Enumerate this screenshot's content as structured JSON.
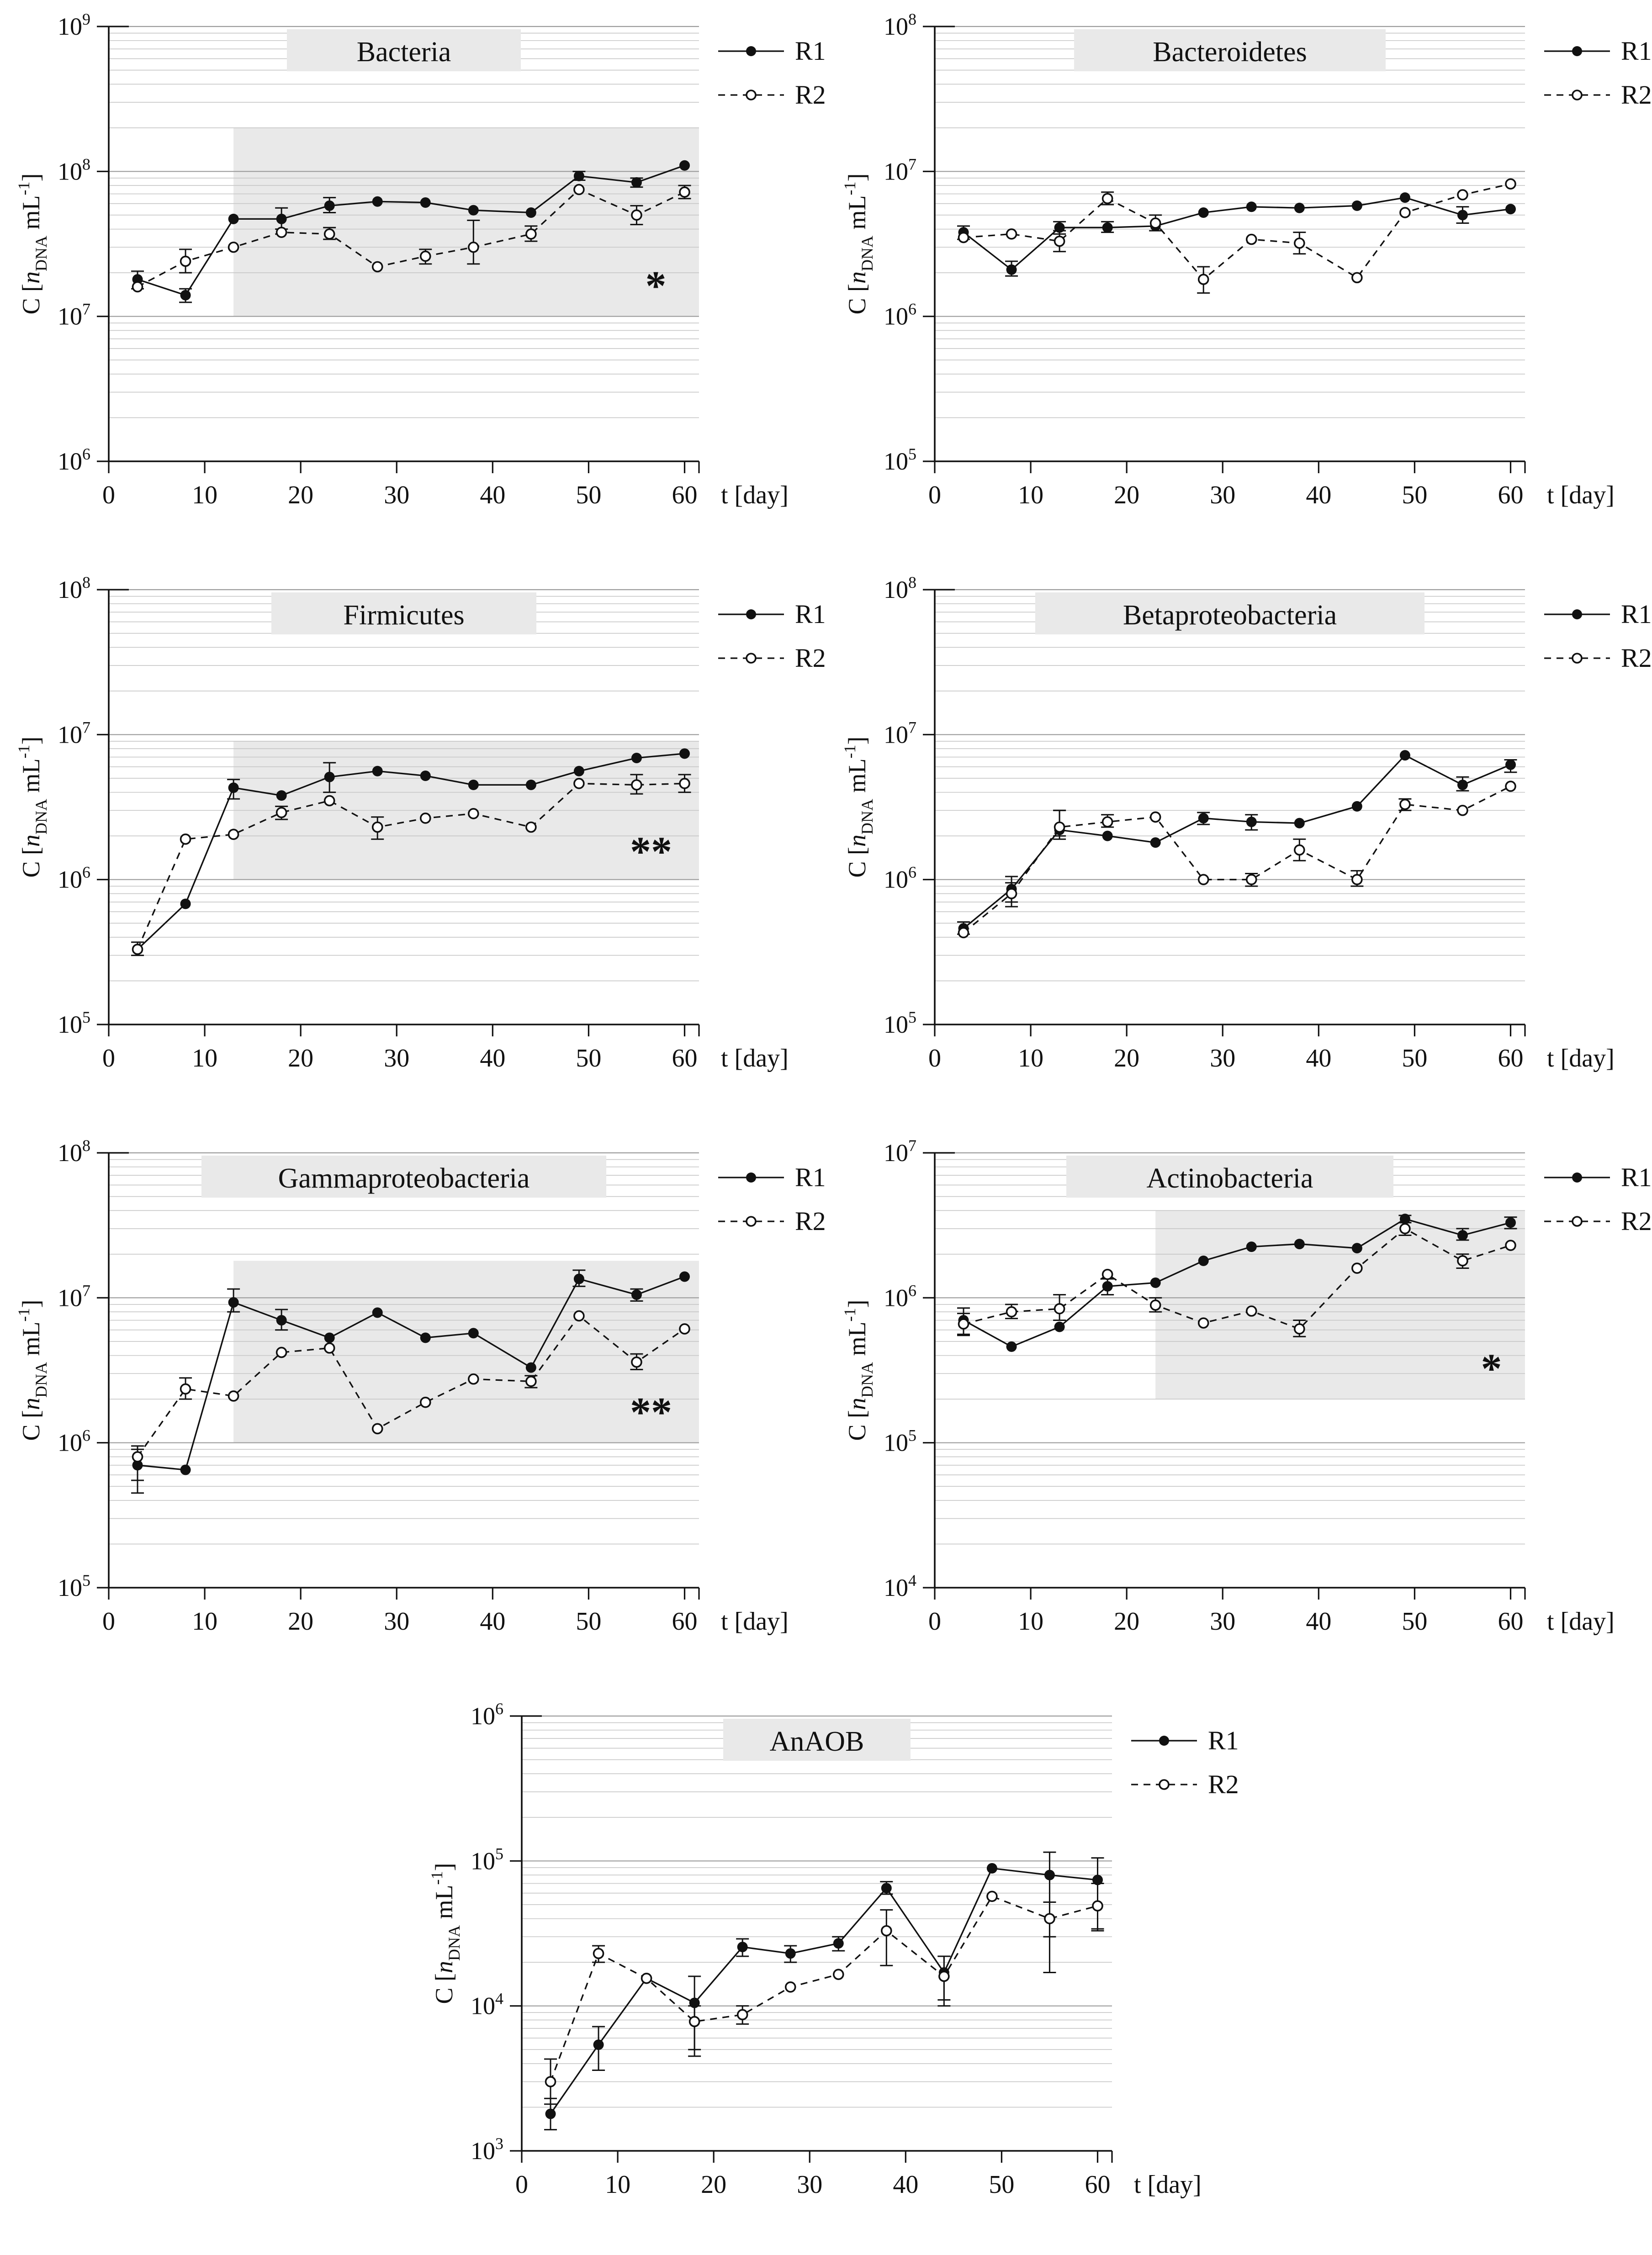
{
  "page": {
    "background": "#ffffff"
  },
  "figure": {
    "x_axis_label": "t [day]",
    "x_ticks": [
      0,
      10,
      20,
      30,
      40,
      50,
      60
    ],
    "x_max": 61.5,
    "y_axis_label": {
      "pre": "C [",
      "var": "n",
      "sub": "DNA",
      "mid": " mL",
      "sup": "-1",
      "post": "]"
    },
    "legend": [
      {
        "label": "R1",
        "marker": "filled-circle",
        "line": "solid"
      },
      {
        "label": "R2",
        "marker": "open-circle",
        "line": "dashed"
      }
    ],
    "colors": {
      "ink": "#111111",
      "grid_minor": "#c6c6c6",
      "grid_major": "#9b9b9b",
      "shade": "#e9e9e9",
      "title_band": "#e9e9e9",
      "marker_open_fill": "#ffffff"
    }
  },
  "chart_data": [
    {
      "type": "line",
      "title": "Bacteria",
      "xlabel": "t [day]",
      "ylabel": "C [nDNA mL-1]",
      "ylim": [
        1000000.0,
        1000000000.0
      ],
      "y_tick_exponents": [
        6,
        7,
        8,
        9
      ],
      "x": [
        3,
        8,
        13,
        18,
        23,
        28,
        33,
        38,
        44,
        49,
        55,
        60
      ],
      "series": [
        {
          "name": "R1",
          "marker": "filled",
          "line": "solid",
          "values": [
            18000000.0,
            14000000.0,
            47000000.0,
            47000000.0,
            58000000.0,
            62000000.0,
            61000000.0,
            54000000.0,
            52000000.0,
            93000000.0,
            84000000.0,
            110000000.0
          ],
          "err": [
            [
              15500000.0,
              20500000.0
            ],
            [
              12500000.0,
              15500000.0
            ],
            null,
            [
              40000000.0,
              56000000.0
            ],
            [
              52000000.0,
              66000000.0
            ],
            null,
            null,
            null,
            null,
            [
              87000000.0,
              100000000.0
            ],
            [
              78000000.0,
              90000000.0
            ],
            null
          ]
        },
        {
          "name": "R2",
          "marker": "open",
          "line": "dashed",
          "values": [
            16000000.0,
            24000000.0,
            30000000.0,
            38000000.0,
            37000000.0,
            22000000.0,
            26000000.0,
            30000000.0,
            37000000.0,
            75000000.0,
            50000000.0,
            72000000.0
          ],
          "err": [
            null,
            [
              20000000.0,
              29000000.0
            ],
            null,
            null,
            [
              34000000.0,
              41000000.0
            ],
            null,
            [
              23000000.0,
              29000000.0
            ],
            [
              23000000.0,
              46000000.0
            ],
            [
              33000000.0,
              42000000.0
            ],
            null,
            [
              43000000.0,
              58000000.0
            ],
            [
              65000000.0,
              80000000.0
            ]
          ]
        }
      ],
      "shading": {
        "x0": 13,
        "x1": 61.5,
        "y0": 10000000.0,
        "y1": 200000000.0,
        "label": "*",
        "label_x": 57,
        "label_y": 13000000.0
      }
    },
    {
      "type": "line",
      "title": "Bacteroidetes",
      "xlabel": "t [day]",
      "ylabel": "C [nDNA mL-1]",
      "ylim": [
        100000.0,
        100000000.0
      ],
      "y_tick_exponents": [
        5,
        6,
        7,
        8
      ],
      "x": [
        3,
        8,
        13,
        18,
        23,
        28,
        33,
        38,
        44,
        49,
        55,
        60
      ],
      "series": [
        {
          "name": "R1",
          "marker": "filled",
          "line": "solid",
          "values": [
            3800000.0,
            2100000.0,
            4100000.0,
            4100000.0,
            4200000.0,
            5200000.0,
            5700000.0,
            5600000.0,
            5800000.0,
            6600000.0,
            5000000.0,
            5500000.0
          ],
          "err": [
            [
              3400000.0,
              4200000.0
            ],
            [
              1900000.0,
              2400000.0
            ],
            [
              3700000.0,
              4500000.0
            ],
            [
              3800000.0,
              4500000.0
            ],
            null,
            null,
            null,
            null,
            null,
            null,
            [
              4400000.0,
              5700000.0
            ],
            null
          ]
        },
        {
          "name": "R2",
          "marker": "open",
          "line": "dashed",
          "values": [
            3500000.0,
            3700000.0,
            3300000.0,
            6500000.0,
            4400000.0,
            1800000.0,
            3400000.0,
            3200000.0,
            1850000.0,
            5200000.0,
            6900000.0,
            8200000.0
          ],
          "err": [
            null,
            null,
            [
              2800000.0,
              3900000.0
            ],
            [
              5900000.0,
              7200000.0
            ],
            [
              3900000.0,
              5000000.0
            ],
            [
              1450000.0,
              2200000.0
            ],
            null,
            [
              2700000.0,
              3800000.0
            ],
            null,
            null,
            null,
            null
          ]
        }
      ],
      "shading": null
    },
    {
      "type": "line",
      "title": "Firmicutes",
      "xlabel": "t [day]",
      "ylabel": "C [nDNA mL-1]",
      "ylim": [
        100000.0,
        100000000.0
      ],
      "y_tick_exponents": [
        5,
        6,
        7,
        8
      ],
      "x": [
        3,
        8,
        13,
        18,
        23,
        28,
        33,
        38,
        44,
        49,
        55,
        60
      ],
      "series": [
        {
          "name": "R1",
          "marker": "filled",
          "line": "solid",
          "values": [
            330000.0,
            680000.0,
            4300000.0,
            3800000.0,
            5100000.0,
            5600000.0,
            5200000.0,
            4500000.0,
            4500000.0,
            5600000.0,
            6900000.0,
            7400000.0
          ],
          "err": [
            [
              300000.0,
              370000.0
            ],
            null,
            [
              3600000.0,
              4900000.0
            ],
            null,
            [
              4000000.0,
              6400000.0
            ],
            null,
            null,
            null,
            null,
            null,
            null,
            null
          ]
        },
        {
          "name": "R2",
          "marker": "open",
          "line": "dashed",
          "values": [
            330000.0,
            1900000.0,
            2050000.0,
            2900000.0,
            3500000.0,
            2300000.0,
            2650000.0,
            2850000.0,
            2300000.0,
            4600000.0,
            4500000.0,
            4600000.0
          ],
          "err": [
            null,
            null,
            null,
            [
              2600000.0,
              3200000.0
            ],
            null,
            [
              1900000.0,
              2700000.0
            ],
            null,
            null,
            null,
            null,
            [
              3900000.0,
              5300000.0
            ],
            [
              4000000.0,
              5300000.0
            ]
          ]
        }
      ],
      "shading": {
        "x0": 13,
        "x1": 61.5,
        "y0": 1000000.0,
        "y1": 9000000.0,
        "label": "**",
        "label_x": 56.5,
        "label_y": 1250000.0
      }
    },
    {
      "type": "line",
      "title": "Betaproteobacteria",
      "xlabel": "t [day]",
      "ylabel": "C [nDNA mL-1]",
      "ylim": [
        100000.0,
        100000000.0
      ],
      "y_tick_exponents": [
        5,
        6,
        7,
        8
      ],
      "x": [
        3,
        8,
        13,
        18,
        23,
        28,
        33,
        38,
        44,
        49,
        55,
        60
      ],
      "series": [
        {
          "name": "R1",
          "marker": "filled",
          "line": "solid",
          "values": [
            460000.0,
            860000.0,
            2200000.0,
            2000000.0,
            1800000.0,
            2650000.0,
            2500000.0,
            2450000.0,
            3200000.0,
            7200000.0,
            4500000.0,
            6200000.0
          ],
          "err": [
            [
              420000.0,
              510000.0
            ],
            [
              700000.0,
              1050000.0
            ],
            [
              1900000.0,
              3000000.0
            ],
            null,
            null,
            [
              2400000.0,
              2900000.0
            ],
            [
              2200000.0,
              2800000.0
            ],
            null,
            null,
            null,
            [
              4100000.0,
              5100000.0
            ],
            [
              5500000.0,
              6700000.0
            ]
          ]
        },
        {
          "name": "R2",
          "marker": "open",
          "line": "dashed",
          "values": [
            430000.0,
            800000.0,
            2300000.0,
            2500000.0,
            2700000.0,
            1000000.0,
            1000000.0,
            1600000.0,
            1000000.0,
            3300000.0,
            3000000.0,
            4400000.0
          ],
          "err": [
            null,
            [
              650000.0,
              950000.0
            ],
            [
              2000000.0,
              3000000.0
            ],
            [
              2300000.0,
              2800000.0
            ],
            null,
            null,
            [
              900000.0,
              1100000.0
            ],
            [
              1350000.0,
              1900000.0
            ],
            [
              900000.0,
              1150000.0
            ],
            [
              3000000.0,
              3600000.0
            ],
            null,
            null
          ]
        }
      ],
      "shading": null
    },
    {
      "type": "line",
      "title": "Gammaproteobacteria",
      "xlabel": "t [day]",
      "ylabel": "C [nDNA mL-1]",
      "ylim": [
        100000.0,
        100000000.0
      ],
      "y_tick_exponents": [
        5,
        6,
        7,
        8
      ],
      "x": [
        3,
        8,
        13,
        18,
        23,
        28,
        33,
        38,
        44,
        49,
        55,
        60
      ],
      "series": [
        {
          "name": "R1",
          "marker": "filled",
          "line": "solid",
          "values": [
            700000.0,
            650000.0,
            9300000.0,
            7000000.0,
            5300000.0,
            7900000.0,
            5300000.0,
            5700000.0,
            3300000.0,
            13500000.0,
            10500000.0,
            14000000.0
          ],
          "err": [
            [
              450000.0,
              900000.0
            ],
            null,
            [
              8000000.0,
              11500000.0
            ],
            [
              6000000.0,
              8300000.0
            ],
            null,
            null,
            null,
            null,
            null,
            [
              12000000.0,
              15500000.0
            ],
            [
              9500000.0,
              11500000.0
            ],
            null
          ]
        },
        {
          "name": "R2",
          "marker": "open",
          "line": "dashed",
          "values": [
            800000.0,
            2350000.0,
            2100000.0,
            4200000.0,
            4500000.0,
            1250000.0,
            1900000.0,
            2750000.0,
            2650000.0,
            7500000.0,
            3600000.0,
            6100000.0
          ],
          "err": [
            [
              550000.0,
              950000.0
            ],
            [
              2000000.0,
              2800000.0
            ],
            null,
            null,
            null,
            null,
            null,
            null,
            [
              2400000.0,
              2900000.0
            ],
            null,
            [
              3200000.0,
              4100000.0
            ],
            null
          ]
        }
      ],
      "shading": {
        "x0": 13,
        "x1": 61.5,
        "y0": 1000000.0,
        "y1": 18000000.0,
        "label": "**",
        "label_x": 56.5,
        "label_y": 1300000.0
      }
    },
    {
      "type": "line",
      "title": "Actinobacteria",
      "xlabel": "t [day]",
      "ylabel": "C [nDNA mL-1]",
      "ylim": [
        10000.0,
        10000000.0
      ],
      "y_tick_exponents": [
        4,
        5,
        6,
        7
      ],
      "x": [
        3,
        8,
        13,
        18,
        23,
        28,
        33,
        38,
        44,
        49,
        55,
        60
      ],
      "series": [
        {
          "name": "R1",
          "marker": "filled",
          "line": "solid",
          "values": [
            700000.0,
            460000.0,
            630000.0,
            1200000.0,
            1270000.0,
            1800000.0,
            2250000.0,
            2350000.0,
            2200000.0,
            3500000.0,
            2700000.0,
            3300000.0
          ],
          "err": [
            [
              550000.0,
              850000.0
            ],
            null,
            null,
            [
              1050000.0,
              1350000.0
            ],
            null,
            null,
            null,
            null,
            null,
            [
              3300000.0,
              3700000.0
            ],
            [
              2500000.0,
              3000000.0
            ],
            [
              3000000.0,
              3600000.0
            ]
          ]
        },
        {
          "name": "R2",
          "marker": "open",
          "line": "dashed",
          "values": [
            660000.0,
            800000.0,
            840000.0,
            1450000.0,
            890000.0,
            670000.0,
            810000.0,
            610000.0,
            1600000.0,
            3000000.0,
            1800000.0,
            2300000.0
          ],
          "err": [
            [
              560000.0,
              780000.0
            ],
            [
              720000.0,
              900000.0
            ],
            [
              700000.0,
              1050000.0
            ],
            null,
            [
              800000.0,
              1000000.0
            ],
            null,
            null,
            [
              540000.0,
              700000.0
            ],
            null,
            [
              2700000.0,
              3300000.0
            ],
            [
              1600000.0,
              2000000.0
            ],
            null
          ]
        }
      ],
      "shading": {
        "x0": 23,
        "x1": 61.5,
        "y0": 200000.0,
        "y1": 4000000.0,
        "label": "*",
        "label_x": 58,
        "label_y": 260000.0
      }
    },
    {
      "type": "line",
      "title": "AnAOB",
      "xlabel": "t [day]",
      "ylabel": "C [nDNA mL-1]",
      "ylim": [
        1000.0,
        1000000.0
      ],
      "y_tick_exponents": [
        3,
        4,
        5,
        6
      ],
      "x": [
        3,
        8,
        13,
        18,
        23,
        28,
        33,
        38,
        44,
        49,
        55,
        60
      ],
      "series": [
        {
          "name": "R1",
          "marker": "filled",
          "line": "solid",
          "values": [
            1800.0,
            5400.0,
            15500.0,
            10500.0,
            25500.0,
            23000.0,
            27000.0,
            65000.0,
            17000.0,
            89000.0,
            80000.0,
            74000.0
          ],
          "err": [
            [
              1400.0,
              2300.0
            ],
            [
              3600.0,
              7200.0
            ],
            null,
            [
              4500.0,
              16000.0
            ],
            [
              22000.0,
              29000.0
            ],
            [
              20000.0,
              26000.0
            ],
            [
              24000.0,
              30000.0
            ],
            [
              59000.0,
              72000.0
            ],
            [
              11000.0,
              22000.0
            ],
            null,
            [
              17000.0,
              115000.0
            ],
            [
              33000.0,
              105000.0
            ]
          ]
        },
        {
          "name": "R2",
          "marker": "open",
          "line": "dashed",
          "values": [
            3000.0,
            23000.0,
            15500.0,
            7800.0,
            8700.0,
            13500.0,
            16500.0,
            33000.0,
            16000.0,
            57000.0,
            40000.0,
            49000.0
          ],
          "err": [
            [
              2100.0,
              4300.0
            ],
            [
              20000.0,
              26000.0
            ],
            null,
            [
              5000.0,
              10000.0
            ],
            [
              7500.0,
              10000.0
            ],
            null,
            null,
            [
              19000.0,
              46000.0
            ],
            [
              10000.0,
              22000.0
            ],
            null,
            [
              30000.0,
              52000.0
            ],
            [
              34000.0,
              70000.0
            ]
          ]
        }
      ],
      "shading": null
    }
  ]
}
